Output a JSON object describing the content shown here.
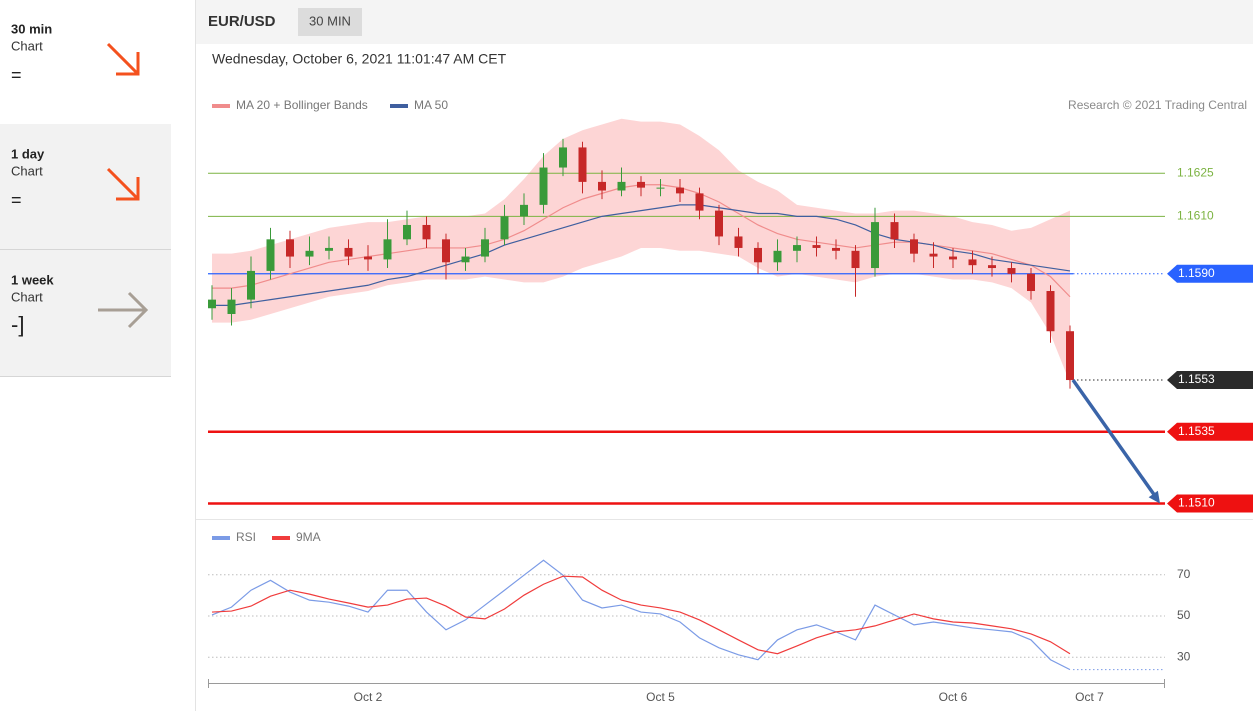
{
  "sidebar": [
    {
      "period": "30 min",
      "label": "Chart",
      "signal": "="
    },
    {
      "period": "1 day",
      "label": "Chart",
      "signal": "="
    },
    {
      "period": "1 week",
      "label": "Chart",
      "signal": "-]"
    }
  ],
  "chart_data": [
    {
      "type": "candlestick",
      "title": "EUR/USD",
      "subtitle": "30 MIN",
      "date": "Wednesday, October 6, 2021 11:01:47 AM CET",
      "source": "Research © 2021 Trading Central",
      "ylim": [
        1.1506,
        1.1654
      ],
      "up_color": "#3a9a3a",
      "down_color": "#c62828",
      "arrow_color": "#3a64a8",
      "open": [
        1.1578,
        1.1576,
        1.1581,
        1.1591,
        1.1602,
        1.1596,
        1.1598,
        1.1599,
        1.1596,
        1.1595,
        1.1602,
        1.1607,
        1.1602,
        1.1594,
        1.1596,
        1.1602,
        1.161,
        1.1614,
        1.1627,
        1.1634,
        1.1622,
        1.1619,
        1.1622,
        1.162,
        1.162,
        1.1618,
        1.1612,
        1.1603,
        1.1599,
        1.1594,
        1.1598,
        1.16,
        1.1599,
        1.1598,
        1.1592,
        1.1608,
        1.1602,
        1.1597,
        1.1596,
        1.1595,
        1.1593,
        1.1592,
        1.159,
        1.1584,
        1.157
      ],
      "high": [
        1.1586,
        1.1585,
        1.1596,
        1.1606,
        1.1605,
        1.1603,
        1.1603,
        1.1602,
        1.16,
        1.1609,
        1.1612,
        1.161,
        1.1604,
        1.1599,
        1.1606,
        1.1614,
        1.1618,
        1.1632,
        1.1637,
        1.1636,
        1.1626,
        1.1627,
        1.1624,
        1.1623,
        1.1623,
        1.162,
        1.1614,
        1.1606,
        1.1601,
        1.1602,
        1.1603,
        1.1603,
        1.1602,
        1.16,
        1.1613,
        1.1611,
        1.1604,
        1.1601,
        1.1599,
        1.1598,
        1.1596,
        1.1594,
        1.1592,
        1.1586,
        1.1572
      ],
      "low": [
        1.1574,
        1.1572,
        1.1578,
        1.1588,
        1.1592,
        1.1593,
        1.1595,
        1.1593,
        1.1591,
        1.1592,
        1.16,
        1.1599,
        1.1588,
        1.1591,
        1.1594,
        1.16,
        1.1607,
        1.1611,
        1.1624,
        1.1618,
        1.1616,
        1.1617,
        1.1617,
        1.1617,
        1.1615,
        1.1609,
        1.16,
        1.1596,
        1.159,
        1.1591,
        1.1594,
        1.1596,
        1.1595,
        1.1582,
        1.1589,
        1.1599,
        1.1594,
        1.1592,
        1.1592,
        1.159,
        1.1589,
        1.1587,
        1.1581,
        1.1566,
        1.155
      ],
      "close": [
        1.1581,
        1.1581,
        1.1591,
        1.1602,
        1.1596,
        1.1598,
        1.1599,
        1.1596,
        1.1595,
        1.1602,
        1.1607,
        1.1602,
        1.1594,
        1.1596,
        1.1602,
        1.161,
        1.1614,
        1.1627,
        1.1634,
        1.1622,
        1.1619,
        1.1622,
        1.162,
        1.162,
        1.1618,
        1.1612,
        1.1603,
        1.1599,
        1.1594,
        1.1598,
        1.16,
        1.1599,
        1.1598,
        1.1592,
        1.1608,
        1.1602,
        1.1597,
        1.1596,
        1.1595,
        1.1593,
        1.1592,
        1.159,
        1.1584,
        1.157,
        1.1553
      ],
      "series": [
        {
          "name": "MA 20 + Bollinger Bands",
          "color": "#f08c8c",
          "band_color": "#fdd5d5",
          "values": [
            1.1585,
            1.1585,
            1.1586,
            1.1588,
            1.159,
            1.1592,
            1.1594,
            1.1595,
            1.1596,
            1.1597,
            1.1598,
            1.1599,
            1.1599,
            1.1599,
            1.16,
            1.1602,
            1.1605,
            1.1609,
            1.1613,
            1.1616,
            1.1618,
            1.162,
            1.1621,
            1.1621,
            1.162,
            1.1618,
            1.1615,
            1.1611,
            1.1607,
            1.1604,
            1.1602,
            1.1601,
            1.16,
            1.1599,
            1.16,
            1.1601,
            1.1601,
            1.16,
            1.1599,
            1.1598,
            1.1597,
            1.1595,
            1.1593,
            1.1589,
            1.1582
          ],
          "upper": [
            1.1597,
            1.1597,
            1.1598,
            1.16,
            1.1602,
            1.1604,
            1.1606,
            1.1607,
            1.1608,
            1.1608,
            1.1609,
            1.161,
            1.161,
            1.161,
            1.1611,
            1.1616,
            1.1623,
            1.1631,
            1.1637,
            1.164,
            1.1642,
            1.1644,
            1.1643,
            1.1643,
            1.1642,
            1.1638,
            1.1633,
            1.1626,
            1.1622,
            1.1619,
            1.1614,
            1.1613,
            1.1612,
            1.1611,
            1.1611,
            1.1612,
            1.1612,
            1.1611,
            1.161,
            1.1608,
            1.1607,
            1.1605,
            1.1606,
            1.1609,
            1.1612
          ],
          "lower": [
            1.1573,
            1.1573,
            1.1574,
            1.1576,
            1.1578,
            1.158,
            1.1582,
            1.1583,
            1.1584,
            1.1586,
            1.1587,
            1.1588,
            1.1588,
            1.1588,
            1.1589,
            1.1588,
            1.1587,
            1.1587,
            1.1589,
            1.1592,
            1.1594,
            1.1596,
            1.1599,
            1.1599,
            1.1598,
            1.1598,
            1.1597,
            1.1596,
            1.1592,
            1.1589,
            1.159,
            1.1589,
            1.1588,
            1.1587,
            1.1589,
            1.159,
            1.159,
            1.1589,
            1.1588,
            1.1588,
            1.1587,
            1.1585,
            1.158,
            1.1569,
            1.1552
          ]
        },
        {
          "name": "MA 50",
          "color": "#3f5f9f",
          "values": [
            1.1579,
            1.1579,
            1.158,
            1.1581,
            1.1582,
            1.1583,
            1.1584,
            1.1585,
            1.1586,
            1.1588,
            1.1589,
            1.1591,
            1.1593,
            1.1595,
            1.1597,
            1.16,
            1.1602,
            1.1604,
            1.1606,
            1.1608,
            1.161,
            1.1611,
            1.1612,
            1.1613,
            1.1614,
            1.1614,
            1.1613,
            1.1612,
            1.1611,
            1.1611,
            1.161,
            1.161,
            1.1609,
            1.1607,
            1.1604,
            1.1602,
            1.1601,
            1.16,
            1.1598,
            1.1597,
            1.1595,
            1.1594,
            1.1593,
            1.1592,
            1.1591
          ]
        }
      ],
      "levels": [
        {
          "value": 1.1625,
          "color": "#7cb342",
          "style": "full",
          "tag": false
        },
        {
          "value": 1.161,
          "label": "1.1610",
          "color": "#7cb342",
          "style": "full",
          "tag": false
        },
        {
          "value": 1.159,
          "label": "1.1590",
          "color": "#2962ff",
          "style": "data",
          "tag": true
        },
        {
          "value": 1.1553,
          "color": "#2b2b2b",
          "style": "dotted",
          "tag": true
        },
        {
          "value": 1.1535,
          "color": "#ee1111",
          "style": "bold",
          "tag": true
        },
        {
          "value": 1.151,
          "label": "1.1510",
          "color": "#ee1111",
          "style": "bold",
          "tag": true
        }
      ]
    },
    {
      "type": "line",
      "ylim": [
        18,
        82
      ],
      "yticks": [
        30,
        50,
        70
      ],
      "categories": [
        null,
        null,
        null,
        null,
        null,
        null,
        null,
        null,
        "Oct 2",
        null,
        null,
        null,
        null,
        null,
        null,
        null,
        null,
        null,
        null,
        null,
        null,
        null,
        null,
        "Oct 5",
        null,
        null,
        null,
        null,
        null,
        null,
        null,
        null,
        null,
        null,
        null,
        null,
        null,
        null,
        "Oct 6",
        null,
        null,
        null,
        null,
        null,
        null,
        "Oct 7",
        null,
        null,
        null
      ],
      "series": [
        {
          "name": "RSI",
          "color": "#7b9be6",
          "values": [
            50.5,
            54.3,
            62.5,
            67.3,
            61.6,
            57.7,
            56.7,
            54.8,
            51.9,
            62.5,
            62.5,
            51.9,
            43.3,
            48.1,
            55.3,
            62.5,
            69.8,
            77.0,
            69.8,
            57.7,
            53.9,
            55.3,
            51.9,
            51.0,
            47.1,
            39.4,
            34.6,
            31.2,
            28.8,
            38.4,
            43.3,
            45.7,
            42.3,
            38.4,
            55.3,
            50.5,
            45.7,
            47.1,
            45.7,
            44.2,
            43.3,
            42.3,
            38.4,
            28.8,
            24.0,
            null,
            null,
            null,
            null
          ]
        },
        {
          "name": "9MA",
          "color": "#f03c3c",
          "values": [
            51.9,
            52.4,
            54.8,
            59.6,
            62.5,
            60.6,
            58.2,
            56.3,
            54.3,
            55.3,
            58.2,
            58.7,
            54.8,
            49.5,
            48.6,
            53.4,
            60.1,
            65.4,
            69.3,
            68.9,
            62.5,
            57.7,
            55.3,
            53.9,
            51.9,
            48.1,
            43.3,
            38.4,
            33.6,
            31.7,
            35.5,
            39.4,
            42.3,
            43.3,
            45.2,
            48.1,
            51.0,
            48.6,
            47.1,
            46.6,
            45.2,
            43.8,
            41.3,
            37.5,
            31.7,
            null,
            null,
            null,
            null
          ]
        }
      ]
    }
  ]
}
